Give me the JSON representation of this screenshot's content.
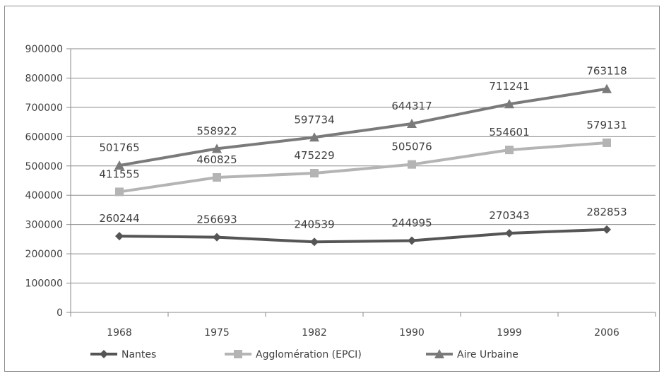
{
  "chart_data": {
    "type": "line",
    "categories": [
      "1968",
      "1975",
      "1982",
      "1990",
      "1999",
      "2006"
    ],
    "series": [
      {
        "name": "Nantes",
        "values": [
          260244,
          256693,
          240539,
          244995,
          270343,
          282853
        ],
        "color": "#555555",
        "marker": "diamond"
      },
      {
        "name": "Agglomération (EPCI)",
        "values": [
          411555,
          460825,
          475229,
          505076,
          554601,
          579131
        ],
        "color": "#b4b4b4",
        "marker": "square"
      },
      {
        "name": "Aire Urbaine",
        "values": [
          501765,
          558922,
          597734,
          644317,
          711241,
          763118
        ],
        "color": "#7a7a7a",
        "marker": "triangle"
      }
    ],
    "ylim": [
      0,
      900000
    ],
    "yticks": [
      0,
      100000,
      200000,
      300000,
      400000,
      500000,
      600000,
      700000,
      800000,
      900000
    ],
    "grid": true,
    "legend_position": "bottom"
  }
}
